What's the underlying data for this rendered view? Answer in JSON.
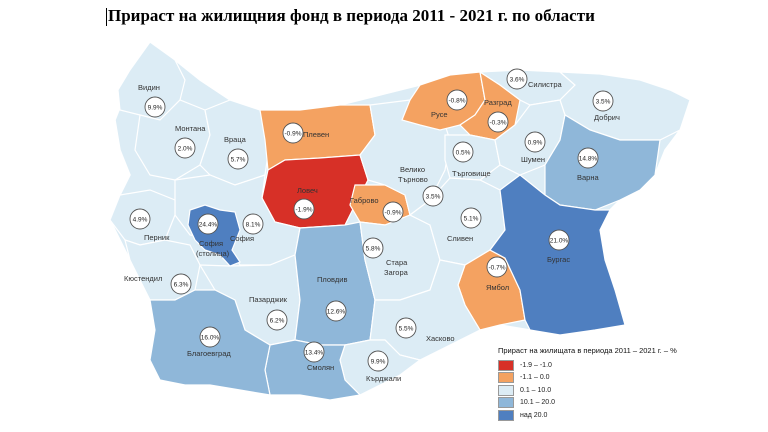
{
  "title": "Прираст на жилищния фонд в периода 2011 - 2021 г. по области",
  "colors": {
    "class_1": "#d73027",
    "class_2": "#f4a261",
    "class_3": "#dcecf5",
    "class_4": "#8fb7d9",
    "class_5": "#4f7fc0",
    "background": "#ffffff"
  },
  "legend": {
    "title": "Прираст на жилищата в периода 2011 – 2021 г. – %",
    "items": [
      {
        "label": "-1.9 – -1.0",
        "color": "#d73027"
      },
      {
        "label": "-1.1 – 0.0",
        "color": "#f4a261"
      },
      {
        "label": "0.1 – 10.0",
        "color": "#dcecf5"
      },
      {
        "label": "10.1 – 20.0",
        "color": "#8fb7d9"
      },
      {
        "label": "над 20.0",
        "color": "#4f7fc0"
      }
    ]
  },
  "regions": [
    {
      "name": "Видин",
      "value": "9.9%"
    },
    {
      "name": "Монтана",
      "value": "2.0%"
    },
    {
      "name": "Враца",
      "value": "5.7%"
    },
    {
      "name": "Плевен",
      "value": "-0.9%"
    },
    {
      "name": "Ловеч",
      "value": "-1.9%"
    },
    {
      "name": "Габрово",
      "value": "-0.9%"
    },
    {
      "name": "Велико Търново",
      "value": "3.5%"
    },
    {
      "name": "Русе",
      "value": "-0.8%"
    },
    {
      "name": "Разград",
      "value": "-0.3%"
    },
    {
      "name": "Силистра",
      "value": "3.6%"
    },
    {
      "name": "Добрич",
      "value": "3.5%"
    },
    {
      "name": "Търговище",
      "value": "0.5%"
    },
    {
      "name": "Шумен",
      "value": "0.9%"
    },
    {
      "name": "Варна",
      "value": "14.8%"
    },
    {
      "name": "Перник",
      "value": "4.9%"
    },
    {
      "name": "София (столица)",
      "value": "24.4%"
    },
    {
      "name": "София",
      "value": "8.1%"
    },
    {
      "name": "Кюстендил",
      "value": "6.3%"
    },
    {
      "name": "Пазарджик",
      "value": "6.2%"
    },
    {
      "name": "Пловдив",
      "value": "12.6%"
    },
    {
      "name": "Стара Загора",
      "value": "5.8%"
    },
    {
      "name": "Сливен",
      "value": "5.1%"
    },
    {
      "name": "Ямбол",
      "value": "-0.7%"
    },
    {
      "name": "Бургас",
      "value": "21.0%"
    },
    {
      "name": "Благоевград",
      "value": "16.0%"
    },
    {
      "name": "Смолян",
      "value": "13.4%"
    },
    {
      "name": "Хасково",
      "value": "5.5%"
    },
    {
      "name": "Кърджали",
      "value": "9.9%"
    }
  ]
}
